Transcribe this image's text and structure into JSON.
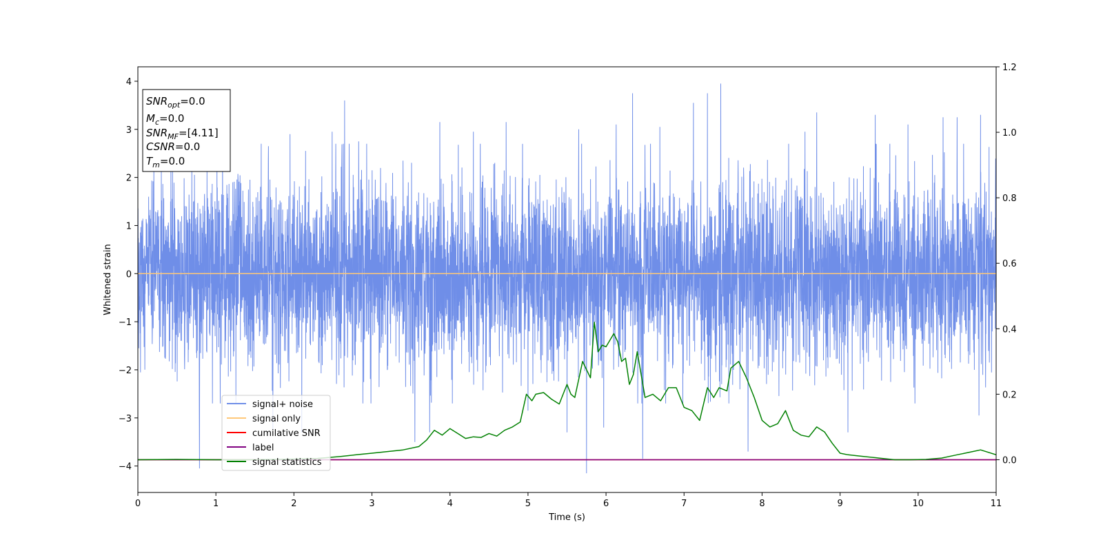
{
  "chart_data": {
    "type": "line",
    "xlabel": "Time (s)",
    "ylabel": "Whitened strain",
    "xlim": [
      0,
      11
    ],
    "ylim": [
      -4.55,
      4.3
    ],
    "y2lim": [
      -0.1,
      1.2
    ],
    "xticks": [
      "0",
      "1",
      "2",
      "3",
      "4",
      "5",
      "6",
      "7",
      "8",
      "9",
      "10",
      "11"
    ],
    "yticks": [
      "4",
      "3",
      "2",
      "1",
      "0",
      "−1",
      "−2",
      "−3",
      "−4"
    ],
    "y2ticks": [
      "1.2",
      "1.0",
      "0.8",
      "0.6",
      "0.4",
      "0.2",
      "0.0"
    ],
    "grid": false,
    "legend_position": "lower-left",
    "annotation": {
      "lines": [
        {
          "base": "SNR",
          "sub": "opt",
          "rest": "=0.0"
        },
        {
          "base": "M",
          "sub": "c",
          "rest": "=0.0"
        },
        {
          "base": "SNR",
          "sub": "MF",
          "rest": "=[4.11]"
        },
        {
          "base": "CSNR",
          "sub": "",
          "rest": "=0.0"
        },
        {
          "base": "T",
          "sub": "m",
          "rest": "=0.0"
        }
      ]
    },
    "series": [
      {
        "name": "signal+ noise",
        "color": "#6f8ee8",
        "axis": "left",
        "style": "noise",
        "x_range": [
          0,
          11
        ],
        "sigma": 0.95,
        "peaks": [
          [
            0.79,
            -4.05
          ],
          [
            0.3,
            2.2
          ],
          [
            1.73,
            -3.25
          ],
          [
            1.95,
            2.9
          ],
          [
            2.1,
            -3.3
          ],
          [
            2.49,
            2.95
          ],
          [
            2.65,
            3.6
          ],
          [
            2.83,
            2.75
          ],
          [
            3.55,
            -3.5
          ],
          [
            3.74,
            -3.3
          ],
          [
            3.87,
            3.15
          ],
          [
            4.3,
            2.95
          ],
          [
            4.72,
            3.15
          ],
          [
            5.0,
            3.35
          ],
          [
            5.0,
            -2.85
          ],
          [
            5.5,
            -3.3
          ],
          [
            5.65,
            3.0
          ],
          [
            5.75,
            -4.15
          ],
          [
            5.97,
            -3.2
          ],
          [
            6.13,
            3.1
          ],
          [
            6.34,
            3.75
          ],
          [
            6.47,
            -3.85
          ],
          [
            6.69,
            3.05
          ],
          [
            7.12,
            3.55
          ],
          [
            7.3,
            3.75
          ],
          [
            7.47,
            3.95
          ],
          [
            7.82,
            -3.7
          ],
          [
            8.55,
            2.95
          ],
          [
            8.7,
            3.35
          ],
          [
            9.1,
            3.4
          ],
          [
            9.1,
            -3.3
          ],
          [
            9.45,
            3.3
          ],
          [
            9.87,
            3.1
          ],
          [
            10.32,
            3.25
          ],
          [
            10.5,
            3.25
          ],
          [
            10.8,
            3.3
          ],
          [
            10.78,
            -2.95
          ]
        ]
      },
      {
        "name": "signal only",
        "color": "#ffc878",
        "axis": "left",
        "x": [
          0,
          11
        ],
        "y": [
          0,
          0
        ]
      },
      {
        "name": "cumilative SNR",
        "color": "#ff0000",
        "axis": "right",
        "x": [
          0,
          11
        ],
        "y": [
          0,
          0
        ]
      },
      {
        "name": "label",
        "color": "#800080",
        "axis": "right",
        "x": [
          0,
          11
        ],
        "y": [
          0,
          0
        ]
      },
      {
        "name": "signal statistics",
        "color": "#008000",
        "axis": "right",
        "x": [
          0,
          0.5,
          1.0,
          1.5,
          2.0,
          2.3,
          2.6,
          2.8,
          3.0,
          3.2,
          3.4,
          3.6,
          3.7,
          3.8,
          3.9,
          4.0,
          4.1,
          4.2,
          4.3,
          4.4,
          4.5,
          4.6,
          4.7,
          4.8,
          4.9,
          4.98,
          5.05,
          5.1,
          5.2,
          5.3,
          5.4,
          5.5,
          5.55,
          5.6,
          5.7,
          5.8,
          5.85,
          5.9,
          5.95,
          6.0,
          6.1,
          6.15,
          6.2,
          6.25,
          6.3,
          6.35,
          6.4,
          6.5,
          6.6,
          6.7,
          6.8,
          6.9,
          7.0,
          7.1,
          7.2,
          7.3,
          7.38,
          7.45,
          7.55,
          7.6,
          7.7,
          7.8,
          7.9,
          8.0,
          8.1,
          8.2,
          8.3,
          8.4,
          8.5,
          8.6,
          8.7,
          8.8,
          8.9,
          9.0,
          9.1,
          9.3,
          9.5,
          9.7,
          9.9,
          10.1,
          10.3,
          10.5,
          10.6,
          10.7,
          10.8,
          11.0
        ],
        "y": [
          0.0,
          0.001,
          0.0,
          0.0,
          0.002,
          0.004,
          0.01,
          0.015,
          0.02,
          0.025,
          0.03,
          0.04,
          0.06,
          0.09,
          0.075,
          0.095,
          0.08,
          0.065,
          0.07,
          0.068,
          0.08,
          0.072,
          0.09,
          0.1,
          0.115,
          0.2,
          0.18,
          0.2,
          0.205,
          0.185,
          0.17,
          0.23,
          0.2,
          0.19,
          0.3,
          0.25,
          0.42,
          0.33,
          0.35,
          0.345,
          0.385,
          0.36,
          0.3,
          0.31,
          0.23,
          0.26,
          0.33,
          0.19,
          0.2,
          0.18,
          0.22,
          0.22,
          0.16,
          0.15,
          0.12,
          0.22,
          0.19,
          0.22,
          0.21,
          0.28,
          0.3,
          0.25,
          0.19,
          0.12,
          0.1,
          0.11,
          0.15,
          0.09,
          0.075,
          0.07,
          0.1,
          0.085,
          0.05,
          0.02,
          0.015,
          0.01,
          0.005,
          0.0,
          0.0,
          0.001,
          0.005,
          0.015,
          0.02,
          0.025,
          0.03,
          0.015
        ]
      }
    ]
  }
}
